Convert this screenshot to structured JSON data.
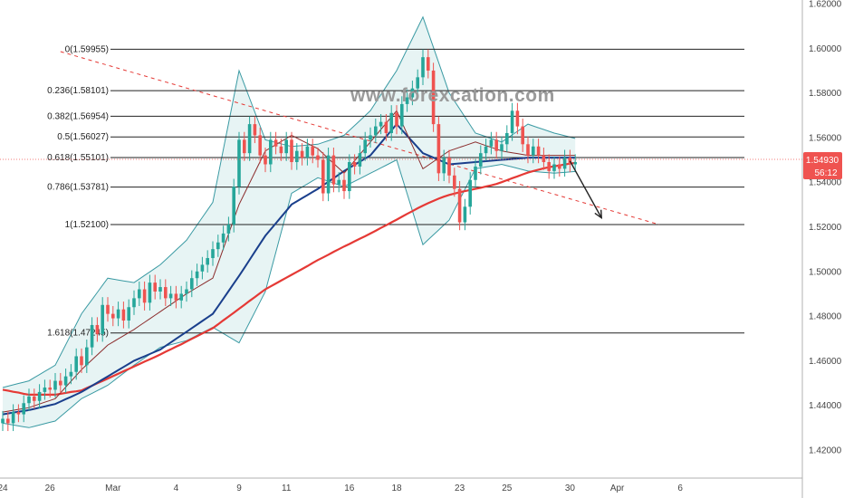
{
  "watermark": "www.forexcation.com",
  "colors": {
    "bull": "#26a69a",
    "bear": "#ef5350",
    "sma200": "#e53935",
    "sma50": "#1a3f8c",
    "sma20": "#8b2c2c",
    "band": "#3a9aa3",
    "band_fill": "#e7f4f4",
    "trendline": "#e53935",
    "fib": "#222222",
    "price_tag": "#ef5350"
  },
  "chart_data": {
    "type": "candlestick",
    "ylim": [
      1.41,
      1.62
    ],
    "y_ticks": [
      "1.42000",
      "1.44000",
      "1.46000",
      "1.48000",
      "1.50000",
      "1.52000",
      "1.54000",
      "1.56000",
      "1.58000",
      "1.60000",
      "1.62000"
    ],
    "x_ticks": [
      {
        "label": "24",
        "i": 0
      },
      {
        "label": "26",
        "i": 9
      },
      {
        "label": "Mar",
        "i": 21
      },
      {
        "label": "4",
        "i": 33
      },
      {
        "label": "9",
        "i": 45
      },
      {
        "label": "11",
        "i": 54
      },
      {
        "label": "16",
        "i": 66
      },
      {
        "label": "18",
        "i": 75
      },
      {
        "label": "23",
        "i": 87
      },
      {
        "label": "25",
        "i": 96
      },
      {
        "label": "30",
        "i": 108
      },
      {
        "label": "Apr",
        "i": 117
      },
      {
        "label": "6",
        "i": 129
      }
    ],
    "fib_levels": [
      {
        "label": "0(1.59955)",
        "value": 1.59955
      },
      {
        "label": "0.236(1.58101)",
        "value": 1.58101
      },
      {
        "label": "0.382(1.56954)",
        "value": 1.56954
      },
      {
        "label": "0.5(1.56027)",
        "value": 1.56027
      },
      {
        "label": "0.618(1.55101)",
        "value": 1.55101
      },
      {
        "label": "0.786(1.53781)",
        "value": 1.53781
      },
      {
        "label": "1(1.52100)",
        "value": 1.521
      },
      {
        "label": "1.618(1.47245)",
        "value": 1.47245
      }
    ],
    "last_price": "1.54930",
    "countdown": "56:12",
    "closes": [
      1.434,
      1.432,
      1.437,
      1.436,
      1.441,
      1.444,
      1.442,
      1.446,
      1.448,
      1.447,
      1.451,
      1.449,
      1.453,
      1.455,
      1.462,
      1.458,
      1.466,
      1.476,
      1.472,
      1.485,
      1.481,
      1.479,
      1.483,
      1.478,
      1.484,
      1.488,
      1.492,
      1.486,
      1.495,
      1.491,
      1.493,
      1.488,
      1.49,
      1.487,
      1.49,
      1.492,
      1.497,
      1.5,
      1.503,
      1.506,
      1.51,
      1.513,
      1.517,
      1.521,
      1.538,
      1.559,
      1.553,
      1.566,
      1.561,
      1.552,
      1.548,
      1.559,
      1.556,
      1.553,
      1.559,
      1.549,
      1.554,
      1.551,
      1.556,
      1.552,
      1.55,
      1.535,
      1.552,
      1.539,
      1.541,
      1.536,
      1.549,
      1.547,
      1.553,
      1.559,
      1.561,
      1.565,
      1.567,
      1.562,
      1.571,
      1.565,
      1.575,
      1.578,
      1.582,
      1.587,
      1.596,
      1.59,
      1.566,
      1.544,
      1.551,
      1.543,
      1.537,
      1.522,
      1.529,
      1.541,
      1.547,
      1.553,
      1.556,
      1.559,
      1.554,
      1.557,
      1.562,
      1.572,
      1.565,
      1.557,
      1.552,
      1.556,
      1.552,
      1.549,
      1.545,
      1.548,
      1.546,
      1.551,
      1.548,
      1.549
    ],
    "sma200": [
      1.447,
      1.4466,
      1.4461,
      1.4457,
      1.4452,
      1.4448,
      1.4448,
      1.4448,
      1.4448,
      1.4448,
      1.4448,
      1.4452,
      1.4456,
      1.446,
      1.4463,
      1.4467,
      1.4478,
      1.4488,
      1.4499,
      1.4509,
      1.452,
      1.4531,
      1.4542,
      1.4553,
      1.4563,
      1.4574,
      1.4585,
      1.4596,
      1.4606,
      1.4617,
      1.4628,
      1.464,
      1.4651,
      1.4663,
      1.4674,
      1.4686,
      1.4698,
      1.471,
      1.4722,
      1.4734,
      1.4746,
      1.4763,
      1.4781,
      1.4798,
      1.4815,
      1.4833,
      1.485,
      1.4868,
      1.4885,
      1.4903,
      1.492,
      1.4933,
      1.4946,
      1.4959,
      1.4972,
      1.4985,
      1.4998,
      1.5011,
      1.5024,
      1.5038,
      1.5051,
      1.5063,
      1.5075,
      1.5088,
      1.51,
      1.5112,
      1.5123,
      1.5135,
      1.5147,
      1.5158,
      1.517,
      1.5182,
      1.5195,
      1.5207,
      1.522,
      1.5232,
      1.5245,
      1.5258,
      1.527,
      1.5283,
      1.5295,
      1.5306,
      1.5316,
      1.5326,
      1.5335,
      1.5343,
      1.5349,
      1.5355,
      1.536,
      1.5365,
      1.537,
      1.5375,
      1.5381,
      1.5386,
      1.5392,
      1.54,
      1.5409,
      1.5418,
      1.5426,
      1.5435,
      1.5443,
      1.545,
      1.5456,
      1.5462,
      1.5467,
      1.5471,
      1.5475,
      1.5479,
      1.5483,
      1.5487
    ],
    "sma50": [
      1.436,
      1.4364,
      1.4368,
      1.4371,
      1.4375,
      1.4379,
      1.4384,
      1.439,
      1.4395,
      1.4401,
      1.4406,
      1.4417,
      1.4428,
      1.4438,
      1.4449,
      1.446,
      1.4474,
      1.4488,
      1.4502,
      1.4516,
      1.453,
      1.4544,
      1.4558,
      1.4572,
      1.4586,
      1.46,
      1.461,
      1.462,
      1.463,
      1.464,
      1.465,
      1.4666,
      1.4682,
      1.4698,
      1.4714,
      1.473,
      1.4746,
      1.4762,
      1.4778,
      1.4794,
      1.481,
      1.4844,
      1.4878,
      1.4912,
      1.4946,
      1.498,
      1.5016,
      1.5052,
      1.5088,
      1.5124,
      1.516,
      1.5188,
      1.5216,
      1.5244,
      1.5272,
      1.53,
      1.5314,
      1.5328,
      1.5342,
      1.5356,
      1.537,
      1.5386,
      1.5402,
      1.5418,
      1.5434,
      1.545,
      1.5464,
      1.5478,
      1.5492,
      1.5506,
      1.552,
      1.5548,
      1.5576,
      1.5604,
      1.5632,
      1.566,
      1.5634,
      1.5608,
      1.5582,
      1.5556,
      1.553,
      1.552,
      1.551,
      1.55,
      1.549,
      1.548,
      1.5482,
      1.5484,
      1.5486,
      1.5488,
      1.549,
      1.5492,
      1.5494,
      1.5496,
      1.5498,
      1.55,
      1.5502,
      1.5504,
      1.5506,
      1.5508,
      1.551,
      1.551,
      1.551,
      1.551,
      1.551,
      1.551,
      1.551,
      1.551,
      1.551,
      1.551
    ],
    "sma20": [
      1.437,
      1.4374,
      1.4378,
      1.4382,
      1.4386,
      1.439,
      1.4398,
      1.4406,
      1.4414,
      1.4422,
      1.443,
      1.4456,
      1.4482,
      1.4508,
      1.4534,
      1.456,
      1.4582,
      1.4604,
      1.4626,
      1.4648,
      1.467,
      1.4684,
      1.4698,
      1.4712,
      1.4726,
      1.474,
      1.4756,
      1.4772,
      1.4788,
      1.4804,
      1.482,
      1.4836,
      1.4852,
      1.4868,
      1.4884,
      1.49,
      1.4914,
      1.4928,
      1.4942,
      1.4956,
      1.497,
      1.5036,
      1.5102,
      1.5168,
      1.5234,
      1.53,
      1.5348,
      1.5396,
      1.5444,
      1.5492,
      1.554,
      1.5554,
      1.5568,
      1.5582,
      1.5596,
      1.561,
      1.5598,
      1.5586,
      1.5574,
      1.5562,
      1.555,
      1.5528,
      1.5506,
      1.5484,
      1.5462,
      1.544,
      1.5468,
      1.5496,
      1.5524,
      1.5552,
      1.558,
      1.5608,
      1.5636,
      1.5664,
      1.5692,
      1.572,
      1.5668,
      1.5616,
      1.5564,
      1.5512,
      1.546,
      1.5476,
      1.5492,
      1.5508,
      1.5524,
      1.554,
      1.5548,
      1.5556,
      1.5564,
      1.5572,
      1.558,
      1.5572,
      1.5564,
      1.5556,
      1.5548,
      1.554,
      1.5536,
      1.5532,
      1.5528,
      1.5524,
      1.552,
      1.552,
      1.552,
      1.552,
      1.552,
      1.552,
      1.552,
      1.552,
      1.552,
      1.552
    ],
    "upper_band": [
      1.448,
      1.4486,
      1.4492,
      1.4498,
      1.4504,
      1.451,
      1.4524,
      1.4538,
      1.4552,
      1.4566,
      1.458,
      1.4626,
      1.4672,
      1.4718,
      1.4764,
      1.481,
      1.4842,
      1.4874,
      1.4906,
      1.4938,
      1.497,
      1.4966,
      1.4962,
      1.4958,
      1.4954,
      1.495,
      1.4966,
      1.4982,
      1.4998,
      1.5014,
      1.503,
      1.5052,
      1.5074,
      1.5096,
      1.5118,
      1.514,
      1.5174,
      1.5208,
      1.5242,
      1.5276,
      1.531,
      1.5428,
      1.5546,
      1.5664,
      1.5782,
      1.59,
      1.5838,
      1.5776,
      1.5714,
      1.5652,
      1.559,
      1.5584,
      1.5578,
      1.5572,
      1.5566,
      1.556,
      1.5562,
      1.5564,
      1.5566,
      1.5568,
      1.557,
      1.5578,
      1.5586,
      1.5594,
      1.5602,
      1.561,
      1.5632,
      1.5654,
      1.5676,
      1.5698,
      1.572,
      1.5756,
      1.5792,
      1.5828,
      1.5864,
      1.59,
      1.5948,
      1.5996,
      1.6044,
      1.6092,
      1.614,
      1.6072,
      1.6004,
      1.5936,
      1.5868,
      1.58,
      1.5764,
      1.5728,
      1.5692,
      1.5656,
      1.562,
      1.5612,
      1.5604,
      1.5596,
      1.5588,
      1.558,
      1.5596,
      1.5612,
      1.5628,
      1.5644,
      1.566,
      1.5652,
      1.5644,
      1.5636,
      1.5628,
      1.562,
      1.5614,
      1.5608,
      1.5602,
      1.5596
    ],
    "lower_band": [
      1.432,
      1.4316,
      1.4312,
      1.4308,
      1.4304,
      1.43,
      1.4306,
      1.4312,
      1.4318,
      1.4324,
      1.433,
      1.435,
      1.437,
      1.439,
      1.441,
      1.443,
      1.4442,
      1.4454,
      1.4466,
      1.4478,
      1.449,
      1.4508,
      1.4526,
      1.4544,
      1.4562,
      1.458,
      1.4596,
      1.4612,
      1.4628,
      1.4644,
      1.466,
      1.4666,
      1.4672,
      1.4678,
      1.4684,
      1.469,
      1.4702,
      1.4714,
      1.4726,
      1.4738,
      1.475,
      1.4736,
      1.4722,
      1.4708,
      1.4694,
      1.468,
      1.4726,
      1.4772,
      1.4818,
      1.4864,
      1.491,
      1.4998,
      1.5086,
      1.5174,
      1.5262,
      1.535,
      1.5364,
      1.5378,
      1.5392,
      1.5406,
      1.542,
      1.5412,
      1.5404,
      1.5396,
      1.5388,
      1.538,
      1.5392,
      1.5404,
      1.5416,
      1.5428,
      1.544,
      1.5452,
      1.5464,
      1.5476,
      1.5488,
      1.55,
      1.5424,
      1.5348,
      1.5272,
      1.5196,
      1.512,
      1.5142,
      1.5164,
      1.5186,
      1.5208,
      1.523,
      1.5276,
      1.5322,
      1.5368,
      1.5414,
      1.546,
      1.5464,
      1.5468,
      1.5472,
      1.5476,
      1.548,
      1.5474,
      1.5468,
      1.5462,
      1.5456,
      1.545,
      1.5448,
      1.5446,
      1.5444,
      1.5442,
      1.544,
      1.5442,
      1.5444,
      1.5446,
      1.5448
    ],
    "trendline": [
      {
        "i": 11,
        "y": 1.5985
      },
      {
        "i": 125,
        "y": 1.521
      }
    ],
    "projection_arrow": [
      {
        "i": 108,
        "y": 1.5495
      },
      {
        "i": 114,
        "y": 1.524
      }
    ]
  }
}
